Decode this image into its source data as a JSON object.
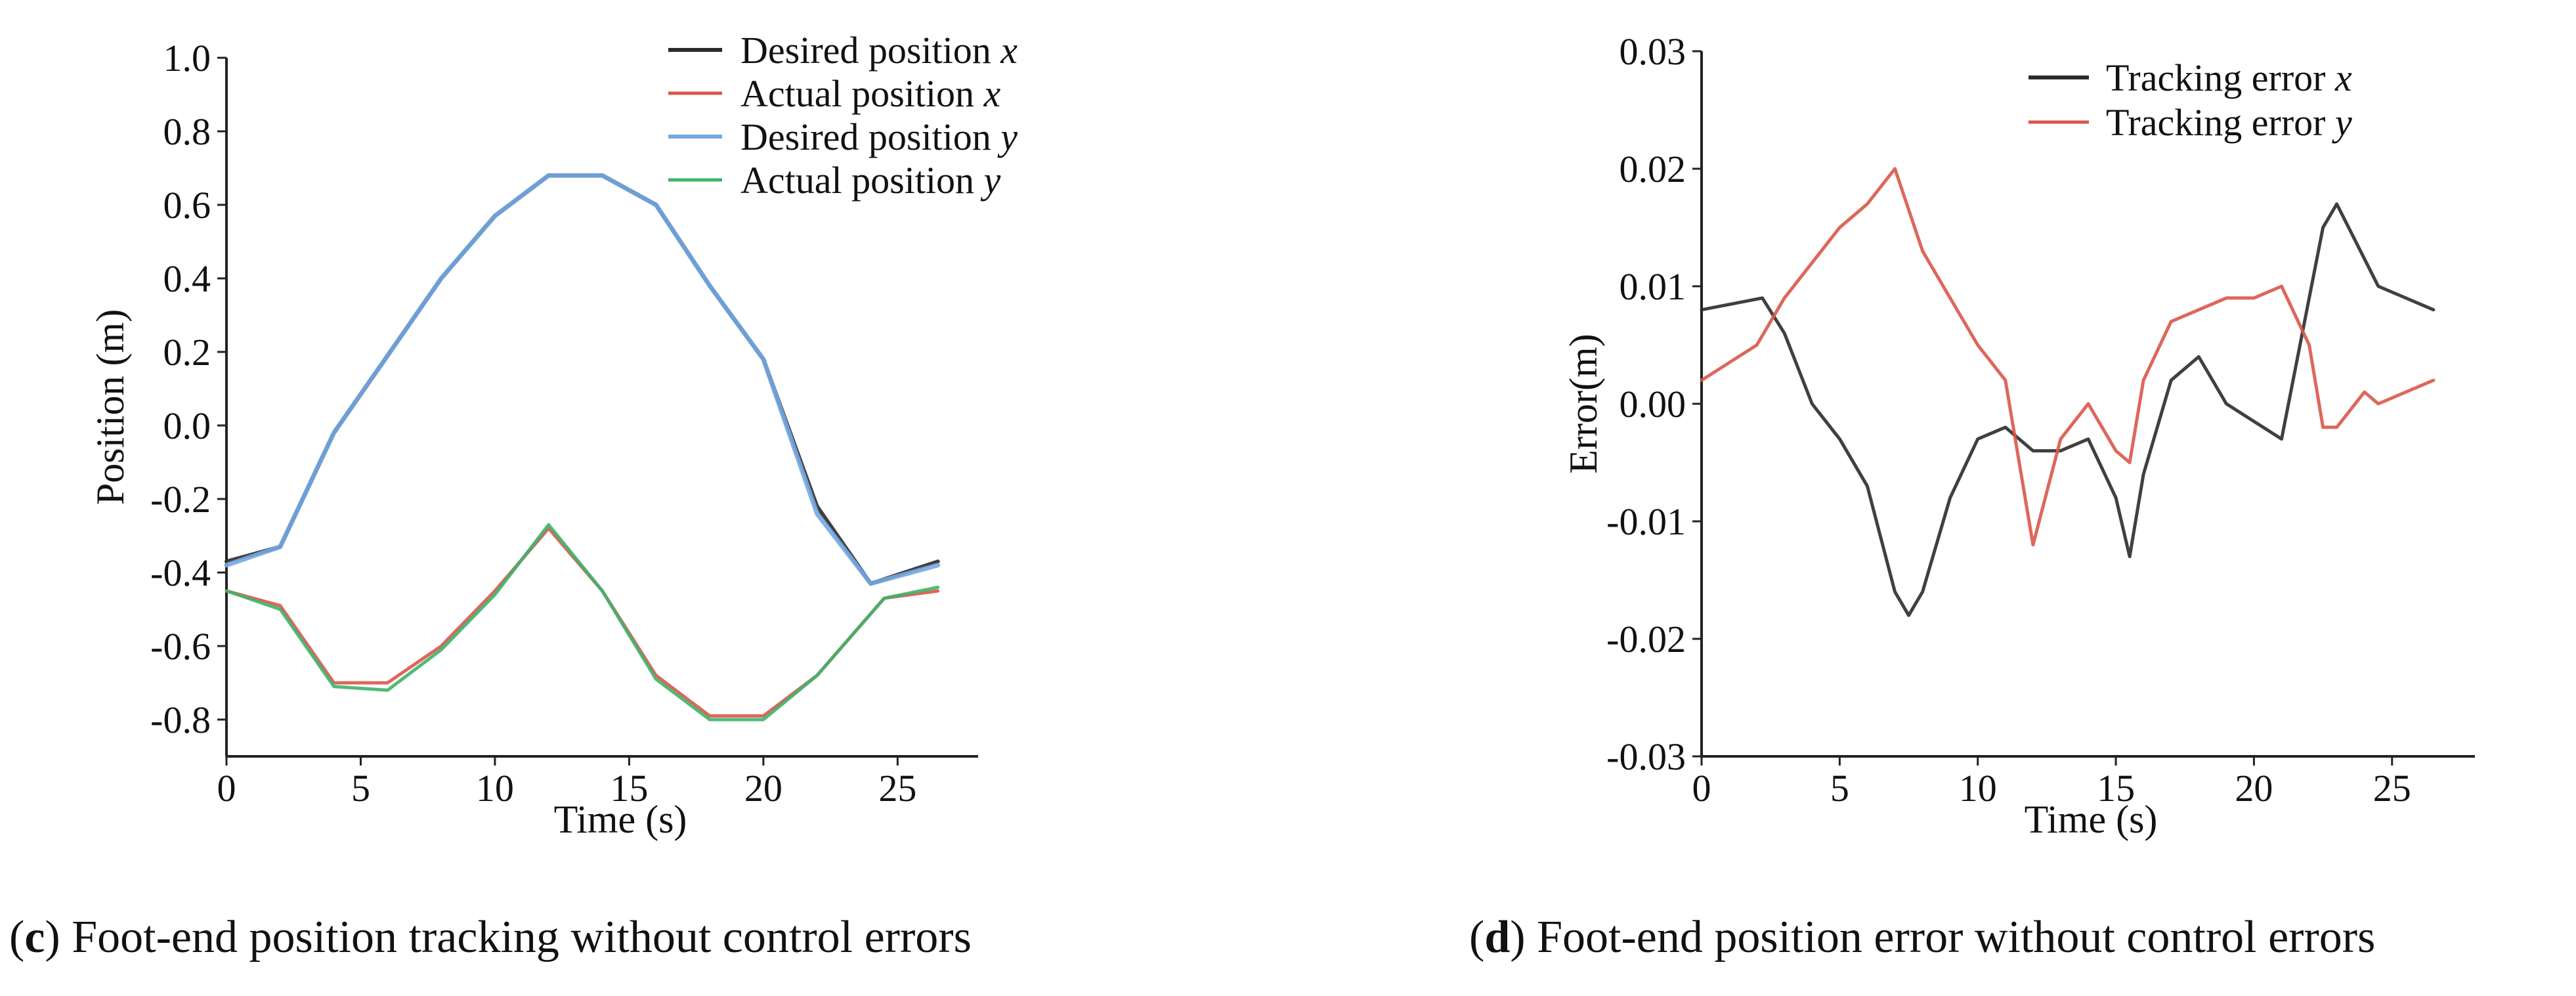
{
  "panels": [
    {
      "caption": {
        "letter": "c",
        "text": "Foot-end position tracking without control errors"
      },
      "chart_data": {
        "type": "line",
        "xlabel": "Time (s)",
        "ylabel": "Position (m)",
        "xlim": [
          0,
          28
        ],
        "ylim": [
          -0.9,
          1.0
        ],
        "xticks": [
          "0",
          "5",
          "10",
          "15",
          "20",
          "25"
        ],
        "yticks": [
          "-0.8",
          "-0.6",
          "-0.4",
          "-0.2",
          "0.0",
          "0.2",
          "0.4",
          "0.6",
          "0.8",
          "1.0"
        ],
        "grid": false,
        "legend_position": "top-right",
        "series": [
          {
            "name": "Desired position",
            "var": "x",
            "color": "#2b2b2b",
            "width": 6,
            "x": [
              0,
              2,
              4,
              6,
              8,
              10,
              12,
              14,
              16,
              18,
              20,
              22,
              24,
              26.5
            ],
            "y": [
              -0.37,
              -0.33,
              -0.02,
              0.19,
              0.4,
              0.57,
              0.68,
              0.68,
              0.6,
              0.38,
              0.18,
              -0.22,
              -0.43,
              -0.37
            ]
          },
          {
            "name": "Actual position",
            "var": "x",
            "color": "#d9574a",
            "width": 5,
            "x": [
              0,
              2,
              4,
              6,
              8,
              10,
              12,
              14,
              16,
              18,
              20,
              22,
              24.5,
              26.5
            ],
            "y": [
              -0.45,
              -0.49,
              -0.7,
              -0.7,
              -0.6,
              -0.45,
              -0.28,
              -0.45,
              -0.68,
              -0.79,
              -0.79,
              -0.68,
              -0.47,
              -0.45
            ]
          },
          {
            "name": "Desired position",
            "var": "y",
            "color": "#74a9e2",
            "width": 7,
            "x": [
              0,
              2,
              4,
              6,
              8,
              10,
              12,
              14,
              16,
              18,
              20,
              22,
              24,
              26.5
            ],
            "y": [
              -0.38,
              -0.33,
              -0.02,
              0.19,
              0.4,
              0.57,
              0.68,
              0.68,
              0.6,
              0.38,
              0.18,
              -0.24,
              -0.43,
              -0.38
            ]
          },
          {
            "name": "Actual position",
            "var": "y",
            "color": "#3eb26a",
            "width": 5,
            "x": [
              0,
              2,
              4,
              6,
              8,
              10,
              12,
              14,
              16,
              18,
              20,
              22,
              24.5,
              26.5
            ],
            "y": [
              -0.45,
              -0.5,
              -0.71,
              -0.72,
              -0.61,
              -0.46,
              -0.27,
              -0.45,
              -0.69,
              -0.8,
              -0.8,
              -0.68,
              -0.47,
              -0.44
            ]
          }
        ]
      }
    },
    {
      "caption": {
        "letter": "d",
        "text": "Foot-end position error without control errors"
      },
      "chart_data": {
        "type": "line",
        "xlabel": "Time (s)",
        "ylabel": "Error(m)",
        "xlim": [
          0,
          28
        ],
        "ylim": [
          -0.03,
          0.03
        ],
        "xticks": [
          "0",
          "5",
          "10",
          "15",
          "20",
          "25"
        ],
        "yticks": [
          "-0.03",
          "-0.02",
          "-0.01",
          "0.00",
          "0.01",
          "0.02",
          "0.03"
        ],
        "grid": false,
        "legend_position": "top-right",
        "series": [
          {
            "name": "Tracking error",
            "var": "x",
            "color": "#2b2b2b",
            "width": 5,
            "x": [
              0,
              2.2,
              3,
              4,
              5,
              6,
              7,
              7.5,
              8,
              9,
              10,
              11,
              12,
              13,
              14,
              15,
              15.5,
              16,
              17,
              18,
              19,
              21,
              22.5,
              23,
              24.5,
              26.5
            ],
            "y": [
              0.008,
              0.009,
              0.006,
              0.0,
              -0.003,
              -0.007,
              -0.016,
              -0.018,
              -0.016,
              -0.008,
              -0.003,
              -0.002,
              -0.004,
              -0.004,
              -0.003,
              -0.008,
              -0.013,
              -0.006,
              0.002,
              0.004,
              0.0,
              -0.003,
              0.015,
              0.017,
              0.01,
              0.008
            ]
          },
          {
            "name": "Tracking error",
            "var": "y",
            "color": "#d9574a",
            "width": 5,
            "x": [
              0,
              2,
              3,
              4,
              5,
              6,
              7,
              8,
              9,
              10,
              11,
              12,
              13,
              14,
              15,
              15.5,
              16,
              17,
              18,
              19,
              20,
              21,
              22,
              22.5,
              23,
              24,
              24.5,
              26.5
            ],
            "y": [
              0.002,
              0.005,
              0.009,
              0.012,
              0.015,
              0.017,
              0.02,
              0.013,
              0.009,
              0.005,
              0.002,
              -0.012,
              -0.003,
              0.0,
              -0.004,
              -0.005,
              0.002,
              0.007,
              0.008,
              0.009,
              0.009,
              0.01,
              0.005,
              -0.002,
              -0.002,
              0.001,
              0.0,
              0.002
            ]
          }
        ]
      }
    }
  ]
}
